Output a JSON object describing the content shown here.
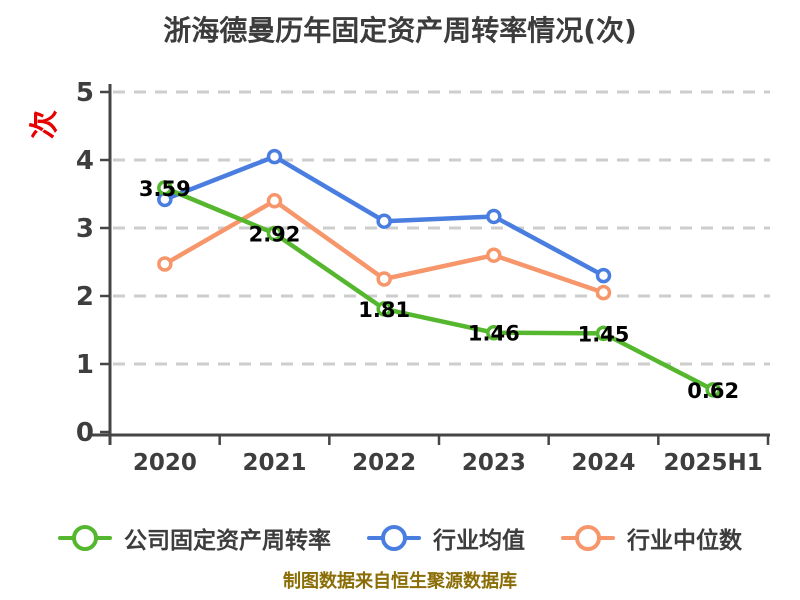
{
  "title": "浙海德曼历年固定资产周转率情况(次)",
  "y_axis_name": "次",
  "footer": "制图数据来自恒生聚源数据库",
  "colors": {
    "company_line": "#55b72e",
    "industry_mean_line": "#4a7de0",
    "industry_median_line": "#f6966a",
    "axis": "#454545",
    "gridline": "#cdcdcd",
    "tick_label": "#3e3e3e",
    "value_label": "#000000",
    "title_text": "#3c3c3c",
    "footer_text": "#8a6d05",
    "y_unit_text": "#e60000",
    "marker_fill": "#ffffff"
  },
  "chart_data": {
    "type": "line",
    "categories": [
      "2020",
      "2021",
      "2022",
      "2023",
      "2024",
      "2025H1"
    ],
    "series": [
      {
        "name": "公司固定资产周转率",
        "color": "#55b72e",
        "show_labels": true,
        "values": [
          3.59,
          2.92,
          1.81,
          1.46,
          1.45,
          0.62
        ],
        "labels": [
          "3.59",
          "2.92",
          "1.81",
          "1.46",
          "1.45",
          "0.62"
        ]
      },
      {
        "name": "行业均值",
        "color": "#4a7de0",
        "show_labels": false,
        "values": [
          3.42,
          4.05,
          3.1,
          3.17,
          2.3,
          null
        ],
        "labels": []
      },
      {
        "name": "行业中位数",
        "color": "#f6966a",
        "show_labels": false,
        "values": [
          2.47,
          3.4,
          2.25,
          2.6,
          2.05,
          null
        ],
        "labels": []
      }
    ],
    "ylim": [
      0,
      5
    ],
    "yticks": [
      0,
      1,
      2,
      3,
      4,
      5
    ],
    "grid": "dashed horizontal",
    "legend_position": "bottom",
    "title": "浙海德曼历年固定资产周转率情况(次)",
    "xlabel": "",
    "ylabel": "次"
  }
}
